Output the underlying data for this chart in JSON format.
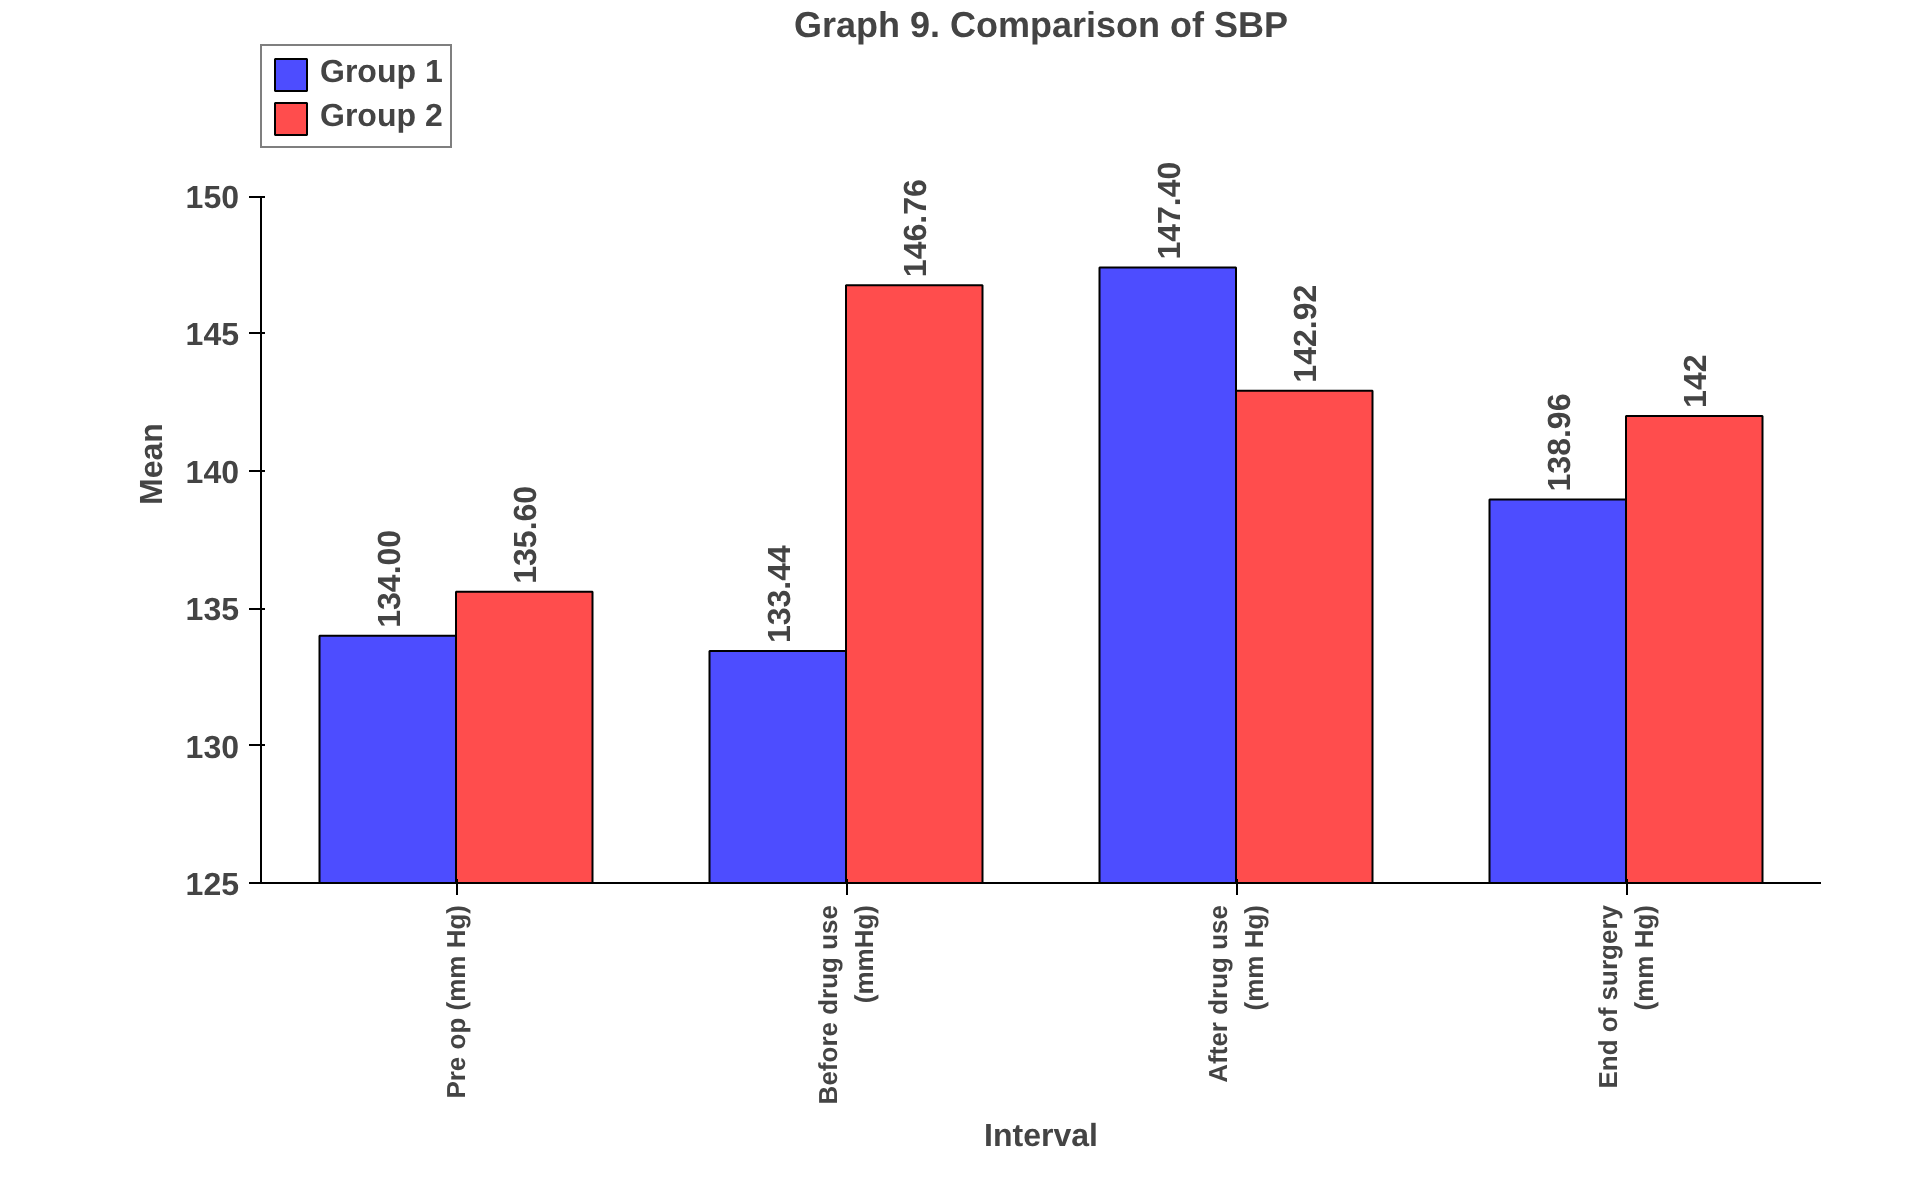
{
  "chart_data": {
    "type": "bar",
    "title": "Graph 9. Comparison of SBP",
    "xlabel": "Interval",
    "ylabel": "Mean",
    "categories": [
      "Pre op (mm Hg)",
      "Before drug use\n(mmHg)",
      "After drug use\n(mm Hg)",
      "End of surgery\n(mm Hg)"
    ],
    "series": [
      {
        "name": "Group 1",
        "color": "#4d4dff",
        "values": [
          134.0,
          133.44,
          147.4,
          138.96
        ],
        "value_labels": [
          "134.00",
          "133.44",
          "147.40",
          "138.96"
        ]
      },
      {
        "name": "Group 2",
        "color": "#ff4d4d",
        "values": [
          135.6,
          146.76,
          142.92,
          142
        ],
        "value_labels": [
          "135.60",
          "146.76",
          "142.92",
          "142"
        ]
      }
    ],
    "ylim": [
      125,
      150
    ],
    "yticks": [
      125,
      130,
      135,
      140,
      145,
      150
    ],
    "grid": false,
    "legend": "top left"
  }
}
